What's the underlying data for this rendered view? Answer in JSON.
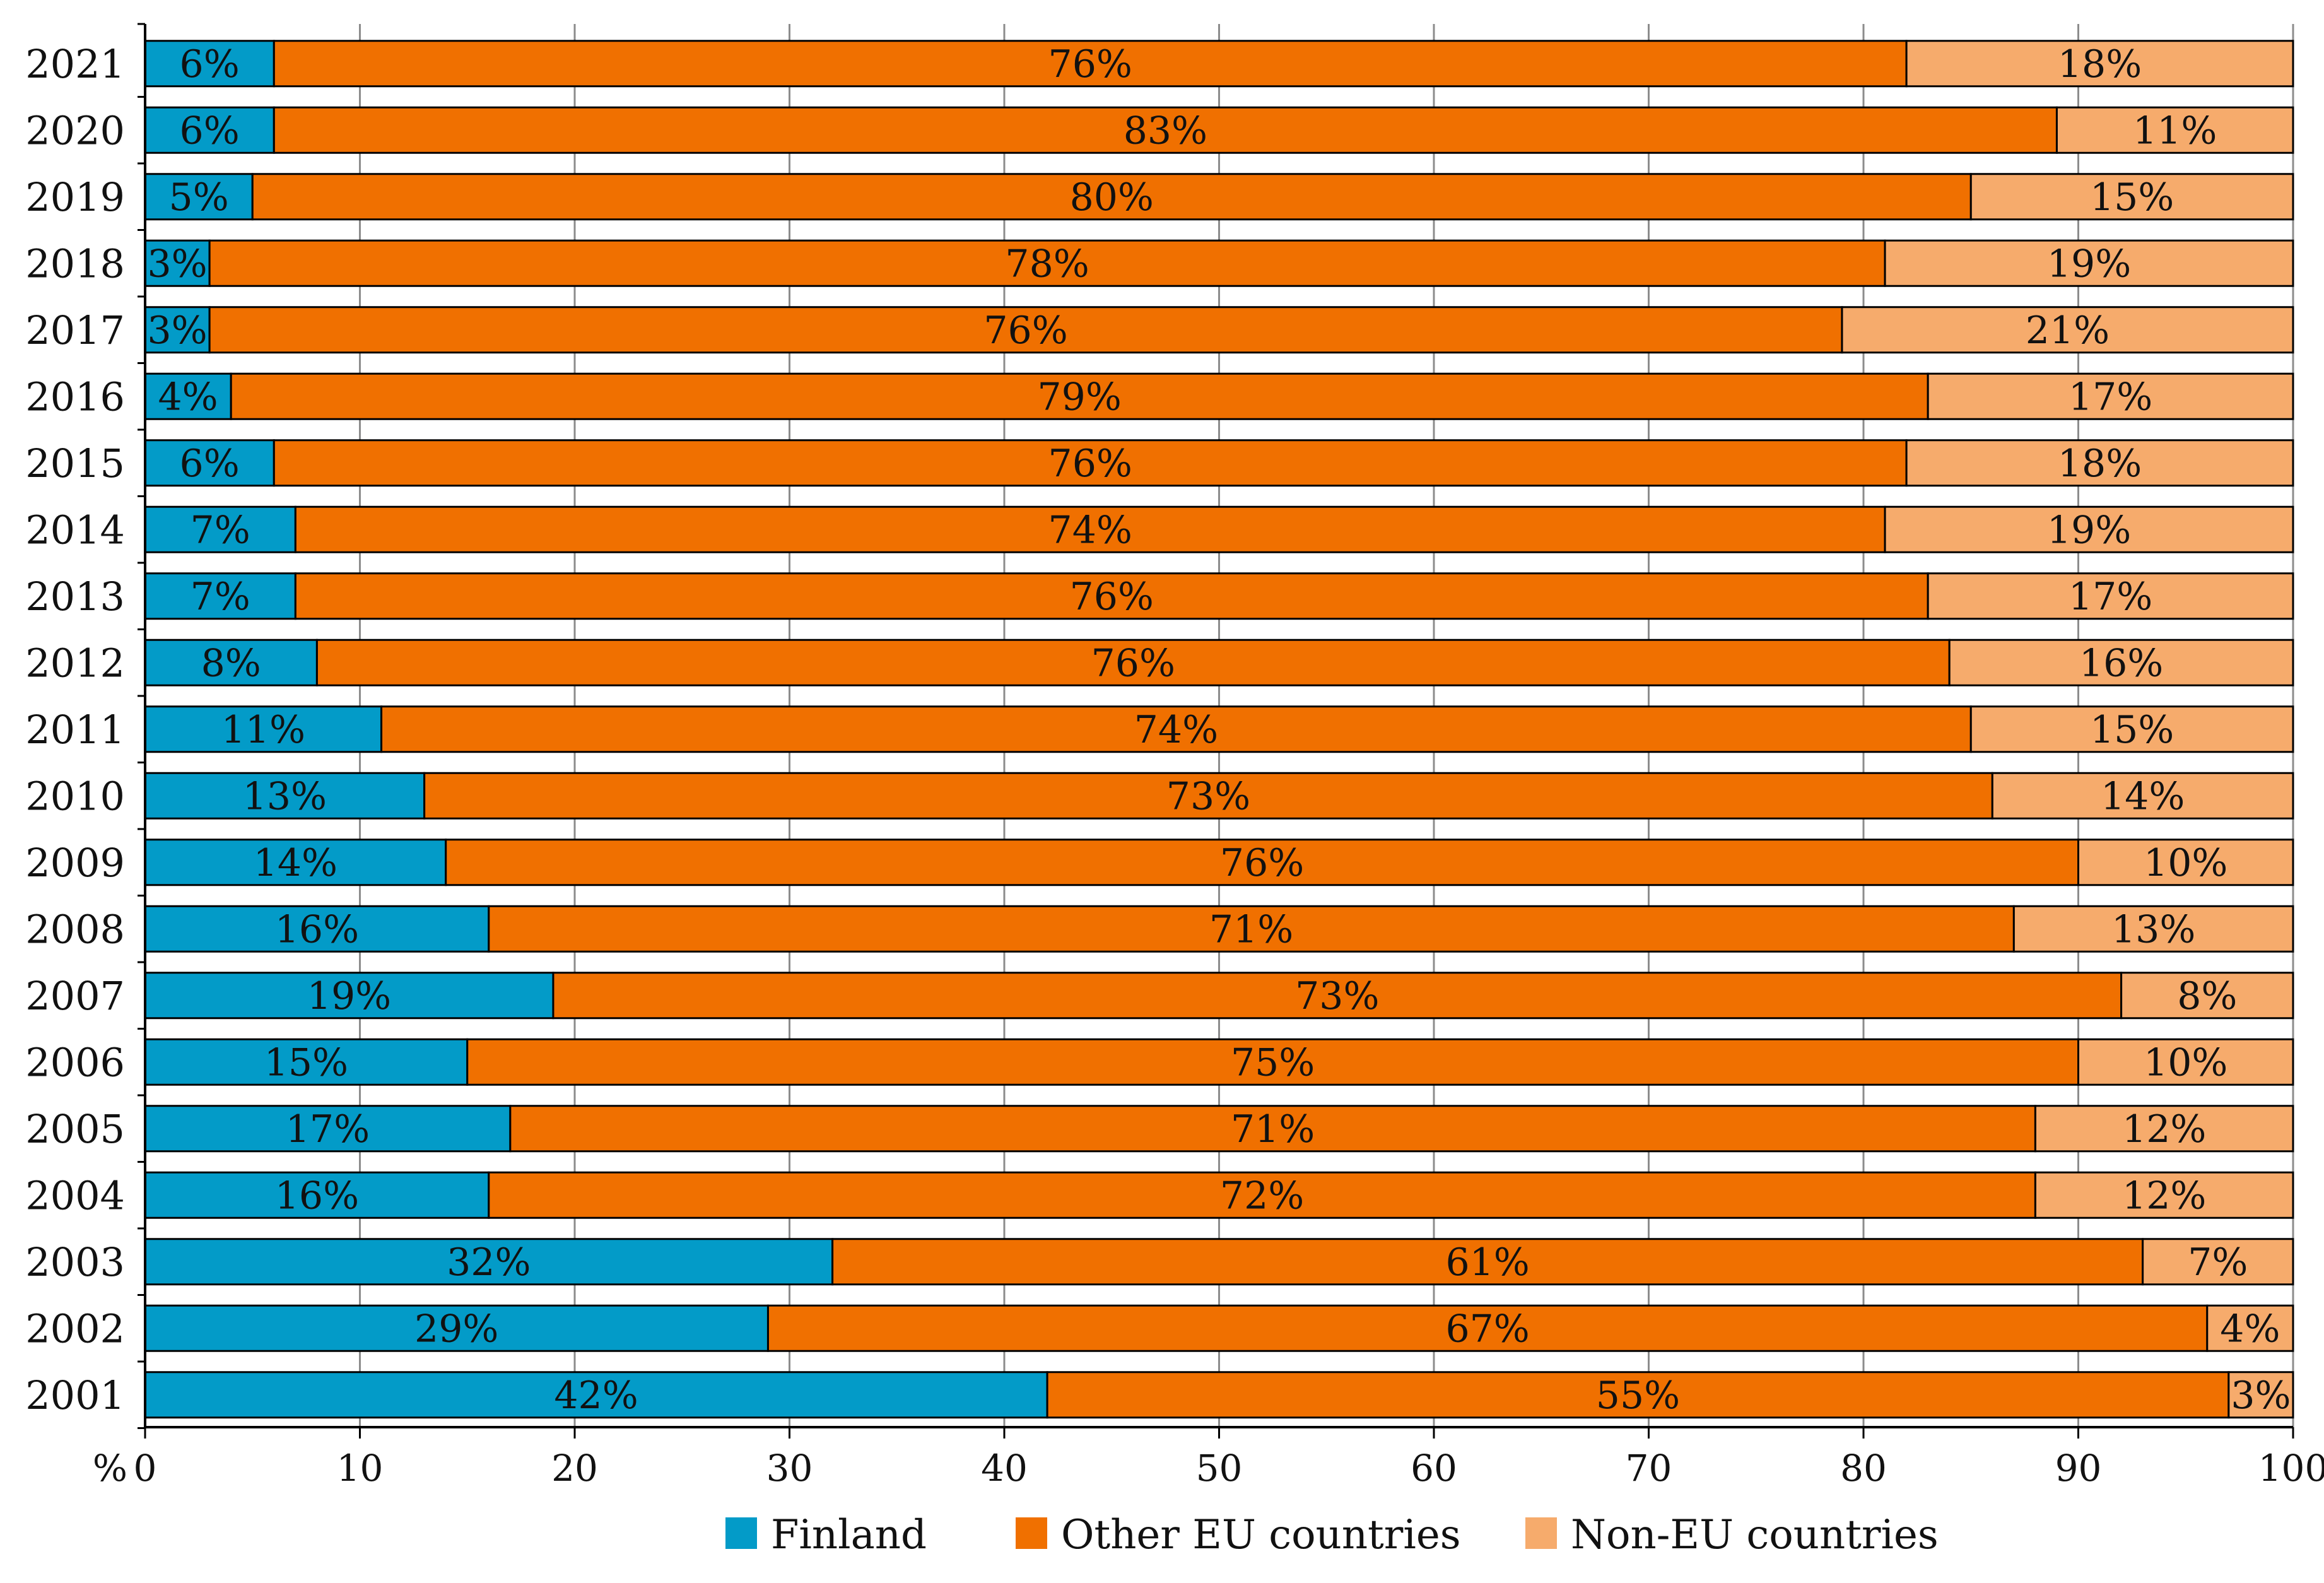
{
  "chart_data": {
    "type": "bar",
    "orientation": "horizontal",
    "stacked": true,
    "title": "",
    "xlabel": "%",
    "ylabel": "",
    "xlim": [
      0,
      100
    ],
    "x_ticks": [
      0,
      10,
      20,
      30,
      40,
      50,
      60,
      70,
      80,
      90,
      100
    ],
    "x_tick_labels": [
      "0",
      "10",
      "20",
      "30",
      "40",
      "50",
      "60",
      "70",
      "80",
      "90",
      "100"
    ],
    "grid": true,
    "legend_position": "bottom",
    "categories": [
      "2021",
      "2020",
      "2019",
      "2018",
      "2017",
      "2016",
      "2015",
      "2014",
      "2013",
      "2012",
      "2011",
      "2010",
      "2009",
      "2008",
      "2007",
      "2006",
      "2005",
      "2004",
      "2003",
      "2002",
      "2001"
    ],
    "series": [
      {
        "name": "Finland",
        "color": "#039bc8",
        "values": [
          6,
          6,
          5,
          3,
          3,
          4,
          6,
          7,
          7,
          8,
          11,
          13,
          14,
          16,
          19,
          15,
          17,
          16,
          32,
          29,
          42
        ],
        "labels": [
          "6%",
          "6%",
          "5%",
          "3%",
          "3%",
          "4%",
          "6%",
          "7%",
          "7%",
          "8%",
          "11%",
          "13%",
          "14%",
          "16%",
          "19%",
          "15%",
          "17%",
          "16%",
          "32%",
          "29%",
          "42%"
        ]
      },
      {
        "name": "Other EU countries",
        "color": "#f07000",
        "values": [
          76,
          83,
          80,
          78,
          76,
          79,
          76,
          74,
          76,
          76,
          74,
          73,
          76,
          71,
          73,
          75,
          71,
          72,
          61,
          67,
          55
        ],
        "labels": [
          "76%",
          "83%",
          "80%",
          "78%",
          "76%",
          "79%",
          "76%",
          "74%",
          "76%",
          "76%",
          "74%",
          "73%",
          "76%",
          "71%",
          "73%",
          "75%",
          "71%",
          "72%",
          "61%",
          "67%",
          "55%"
        ]
      },
      {
        "name": "Non-EU countries",
        "color": "#f6ab6c",
        "values": [
          18,
          11,
          15,
          19,
          21,
          17,
          18,
          19,
          17,
          16,
          15,
          14,
          10,
          13,
          8,
          10,
          12,
          12,
          7,
          4,
          3
        ],
        "labels": [
          "18%",
          "11%",
          "15%",
          "19%",
          "21%",
          "17%",
          "18%",
          "19%",
          "17%",
          "16%",
          "15%",
          "14%",
          "10%",
          "13%",
          "8%",
          "10%",
          "12%",
          "12%",
          "7%",
          "4%",
          "3%"
        ]
      }
    ]
  }
}
